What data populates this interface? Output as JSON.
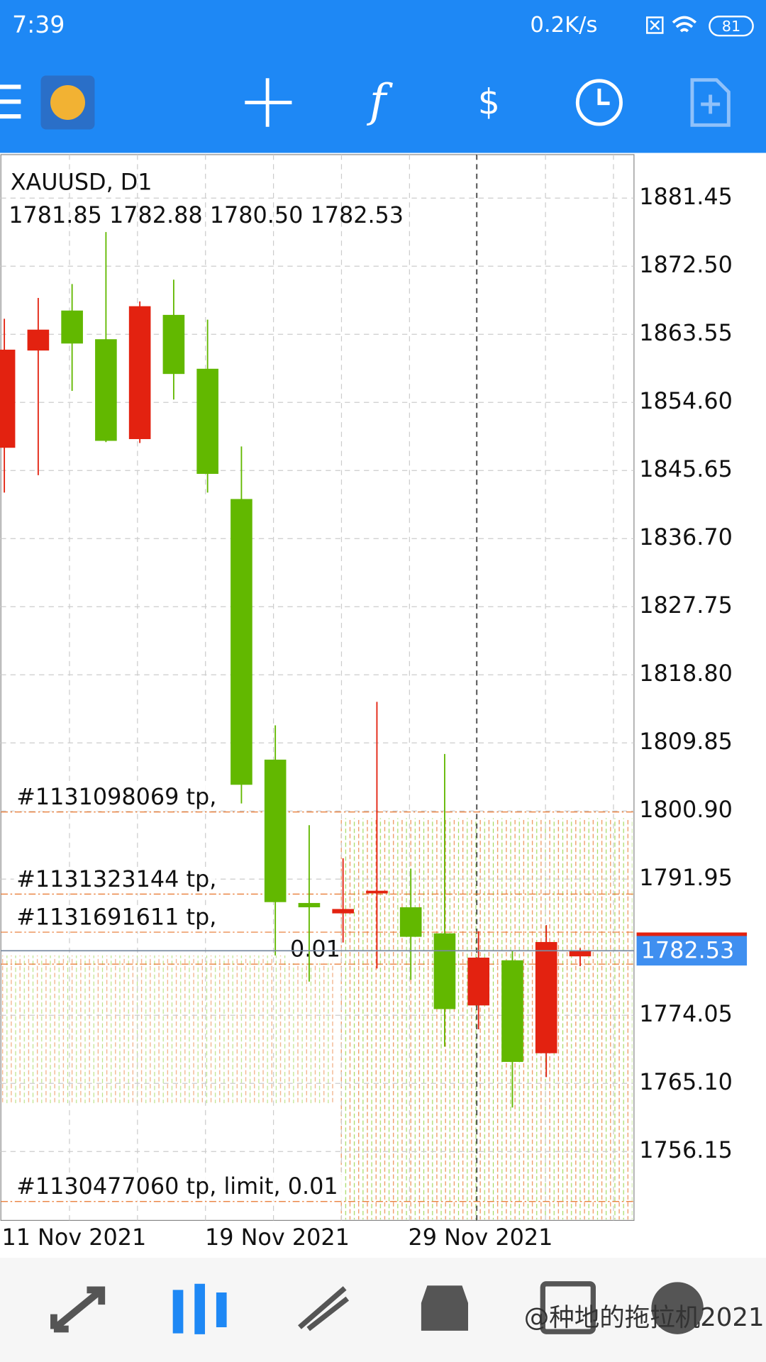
{
  "status_bar": {
    "time": "7:39",
    "speed": "0.2K/s",
    "battery": "81"
  },
  "chart_data": {
    "type": "candlestick",
    "symbol": "XAUUSD, D1",
    "ohlc": "1781.85 1782.88 1780.50 1782.53",
    "categories": [
      "11 Nov 2021",
      null,
      null,
      null,
      null,
      null,
      "19 Nov 2021",
      null,
      null,
      null,
      null,
      null,
      "29 Nov 2021",
      null,
      null,
      null,
      null,
      null
    ],
    "open": [
      1848.69,
      1861.47,
      1866.61,
      1862.84,
      1849.83,
      1866.04,
      1858.96,
      1841.84,
      1807.59,
      1788.75,
      1787.5,
      1790.13,
      1788.19,
      1784.76,
      1775.4,
      1781.22,
      1769.12,
      1781.85
    ],
    "high": [
      1865.58,
      1868.32,
      1870.15,
      1876.98,
      1867.87,
      1870.72,
      1865.47,
      1848.8,
      1812.16,
      1799.03,
      1794.69,
      1815.24,
      1793.32,
      1808.39,
      1785.1,
      1782.6,
      1785.9,
      1782.88
    ],
    "low": [
      1842.75,
      1845.03,
      1856.11,
      1849.37,
      1849.26,
      1854.97,
      1842.75,
      1801.89,
      1781.91,
      1778.48,
      1783.62,
      1780.2,
      1778.71,
      1769.92,
      1772.21,
      1761.93,
      1765.93,
      1780.5
    ],
    "close": [
      1861.47,
      1864.1,
      1862.39,
      1849.6,
      1867.18,
      1858.39,
      1845.26,
      1804.4,
      1788.98,
      1788.3,
      1787.96,
      1790.36,
      1784.42,
      1774.92,
      1781.57,
      1767.98,
      1783.62,
      1782.53
    ],
    "up_color": "#e32210",
    "down_color": "#62b800",
    "ylim": [
      1747.09,
      1887.16
    ],
    "yticks": [
      1881.45,
      {
        "value": 1872.5,
        "label": "1872.50"
      },
      1863.55,
      {
        "value": 1854.6,
        "label": "1854.60"
      },
      1845.65,
      {
        "value": 1836.7,
        "label": "1836.70"
      },
      1827.75,
      {
        "value": 1818.8,
        "label": "1818.80"
      },
      1809.85,
      {
        "value": 1800.9,
        "label": "1800.90"
      },
      1791.95,
      1774.05,
      {
        "value": 1765.1,
        "label": "1765.10"
      },
      1756.15
    ],
    "current_price": 1782.53,
    "grid": true,
    "order_labels": [
      {
        "text": "#1131098069 tp,",
        "price": 1802.6
      },
      {
        "text": "#1131323144 tp,",
        "price": 1791.8
      },
      {
        "text": "#1131691611 tp,",
        "price": 1786.8
      },
      {
        "text": "0.01",
        "price": 1782.6
      },
      {
        "text": "#1130477060 tp, limit, 0.01",
        "price": 1751.4
      }
    ]
  },
  "watermark": "@种地的拖拉机2021"
}
